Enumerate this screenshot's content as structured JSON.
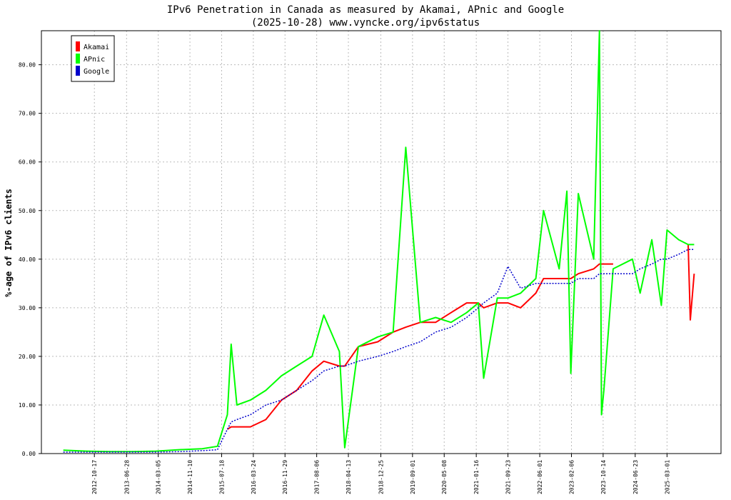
{
  "chart_data": {
    "type": "line",
    "title": "IPv6 Penetration in Canada as measured by Akamai, APnic and Google",
    "subtitle": "(2025-10-28) www.vyncke.org/ipv6status",
    "y_label": "%-age of IPv6 clients",
    "legend": "upper left",
    "grid": true,
    "xlim": [
      "2011-08-26",
      "2026-05-01"
    ],
    "ylim": [
      0,
      87
    ],
    "yticks": [
      {
        "value": 0,
        "label": "0.00"
      },
      {
        "value": 10,
        "label": "10.00"
      },
      {
        "value": 20,
        "label": "20.00"
      },
      {
        "value": 30,
        "label": "30.00"
      },
      {
        "value": 40,
        "label": "40.00"
      },
      {
        "value": 50,
        "label": "50.00"
      },
      {
        "value": 60,
        "label": "60.00"
      },
      {
        "value": 70,
        "label": "70.00"
      },
      {
        "value": 80,
        "label": "80.00"
      }
    ],
    "xticks": [
      "2012-10-17",
      "2013-06-28",
      "2014-03-05",
      "2014-11-10",
      "2015-07-18",
      "2016-03-24",
      "2016-11-29",
      "2017-08-06",
      "2018-04-13",
      "2018-12-25",
      "2019-09-01",
      "2020-05-08",
      "2021-01-16",
      "2021-09-23",
      "2022-06-01",
      "2023-02-06",
      "2023-10-14",
      "2024-06-23",
      "2025-03-01"
    ],
    "x": [
      "2012-02-15",
      "2012-08-15",
      "2013-02-15",
      "2013-08-15",
      "2014-02-15",
      "2014-08-15",
      "2015-02-15",
      "2015-06-15",
      "2015-09-01",
      "2015-10-01",
      "2015-11-15",
      "2016-03-01",
      "2016-07-01",
      "2016-11-01",
      "2017-03-01",
      "2017-07-01",
      "2017-10-01",
      "2018-02-01",
      "2018-03-15",
      "2018-07-01",
      "2018-12-01",
      "2019-04-01",
      "2019-07-10",
      "2019-11-01",
      "2020-03-01",
      "2020-07-01",
      "2020-11-01",
      "2021-02-01",
      "2021-03-15",
      "2021-07-01",
      "2021-09-23",
      "2022-01-01",
      "2022-05-01",
      "2022-07-01",
      "2022-11-01",
      "2023-01-01",
      "2023-02-01",
      "2023-04-01",
      "2023-08-01",
      "2023-09-15",
      "2023-10-01",
      "2023-10-20",
      "2024-01-01",
      "2024-06-01",
      "2024-08-01",
      "2024-11-01",
      "2025-01-15",
      "2025-03-01",
      "2025-06-01",
      "2025-08-15",
      "2025-09-01",
      "2025-10-01"
    ],
    "series": [
      {
        "name": "Akamai",
        "color": "#ff0000",
        "values": [
          null,
          null,
          null,
          null,
          null,
          null,
          null,
          null,
          5.0,
          5.5,
          5.5,
          5.5,
          7,
          11,
          13,
          17,
          19,
          18,
          18,
          22,
          23,
          25,
          26,
          27,
          27,
          29,
          31,
          31,
          30,
          31,
          31,
          30,
          33,
          36,
          36,
          36,
          36,
          37,
          38,
          39,
          39,
          39,
          39,
          null,
          null,
          null,
          null,
          null,
          null,
          43,
          27.5,
          37
        ]
      },
      {
        "name": "APnic",
        "color": "#00ff00",
        "values": [
          0.7,
          0.5,
          0.4,
          0.4,
          0.5,
          0.8,
          1.0,
          1.5,
          8,
          22.5,
          10,
          11,
          13,
          16,
          18,
          20,
          28.5,
          21,
          1.2,
          22,
          24,
          25,
          63,
          27,
          28,
          27,
          29,
          31,
          15.5,
          32,
          32,
          33,
          36,
          50,
          38,
          54,
          16.5,
          53.5,
          40,
          87,
          8,
          13,
          38,
          40,
          33,
          44,
          30.5,
          46,
          44,
          43,
          43,
          43
        ]
      },
      {
        "name": "Google",
        "color": "#0000cc",
        "dashed": true,
        "values": [
          0.3,
          0.3,
          0.3,
          0.3,
          0.3,
          0.4,
          0.6,
          0.8,
          5,
          6.5,
          7,
          8,
          10,
          11,
          13,
          15,
          17,
          18,
          18,
          19,
          20,
          21,
          22,
          23,
          25,
          26,
          28,
          30,
          31,
          33,
          38.5,
          34,
          35,
          35,
          35,
          35,
          35,
          36,
          36,
          37,
          37,
          37,
          37,
          37,
          38,
          39,
          40,
          40,
          41,
          42,
          42,
          42
        ]
      }
    ]
  }
}
